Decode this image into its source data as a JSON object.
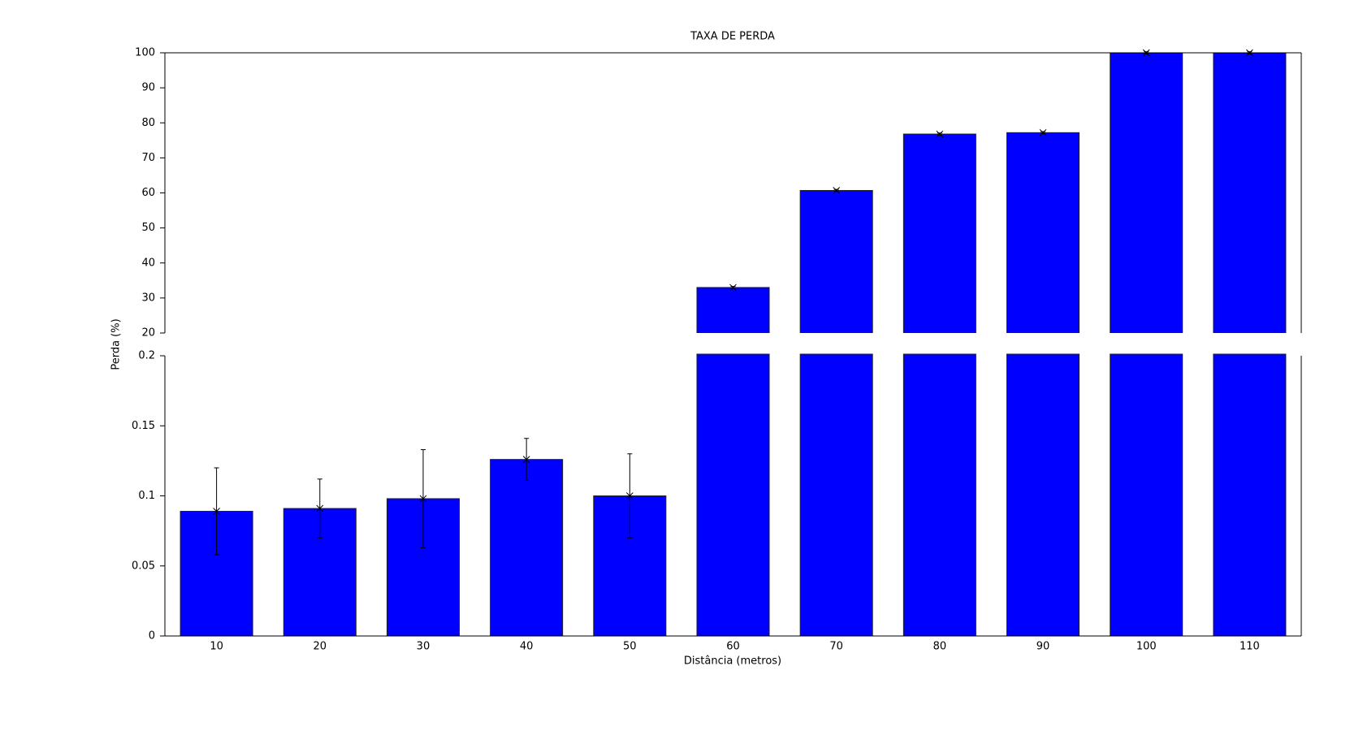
{
  "chart_data": {
    "type": "bar",
    "title": "TAXA DE PERDA",
    "x_label": "Distância (metros)",
    "y_label": "Perda (%)",
    "categories": [
      "10",
      "20",
      "30",
      "40",
      "50",
      "60",
      "70",
      "80",
      "90",
      "100",
      "110"
    ],
    "values": [
      0.089,
      0.091,
      0.098,
      0.126,
      0.1,
      33,
      60.7,
      76.8,
      77.2,
      100,
      100
    ],
    "errors": [
      0.031,
      0.021,
      0.035,
      0.015,
      0.03,
      0.3,
      0.3,
      0.3,
      0.3,
      0.3,
      0.3
    ],
    "color": "#0000ff",
    "broken_axis": [
      {
        "ylim": [
          20,
          100
        ],
        "yticks": [
          20,
          30,
          40,
          50,
          60,
          70,
          80,
          90,
          100
        ]
      },
      {
        "ylim": [
          0,
          0.2
        ],
        "yticks": [
          0,
          0.05,
          0.1,
          0.15,
          0.2
        ]
      }
    ]
  }
}
